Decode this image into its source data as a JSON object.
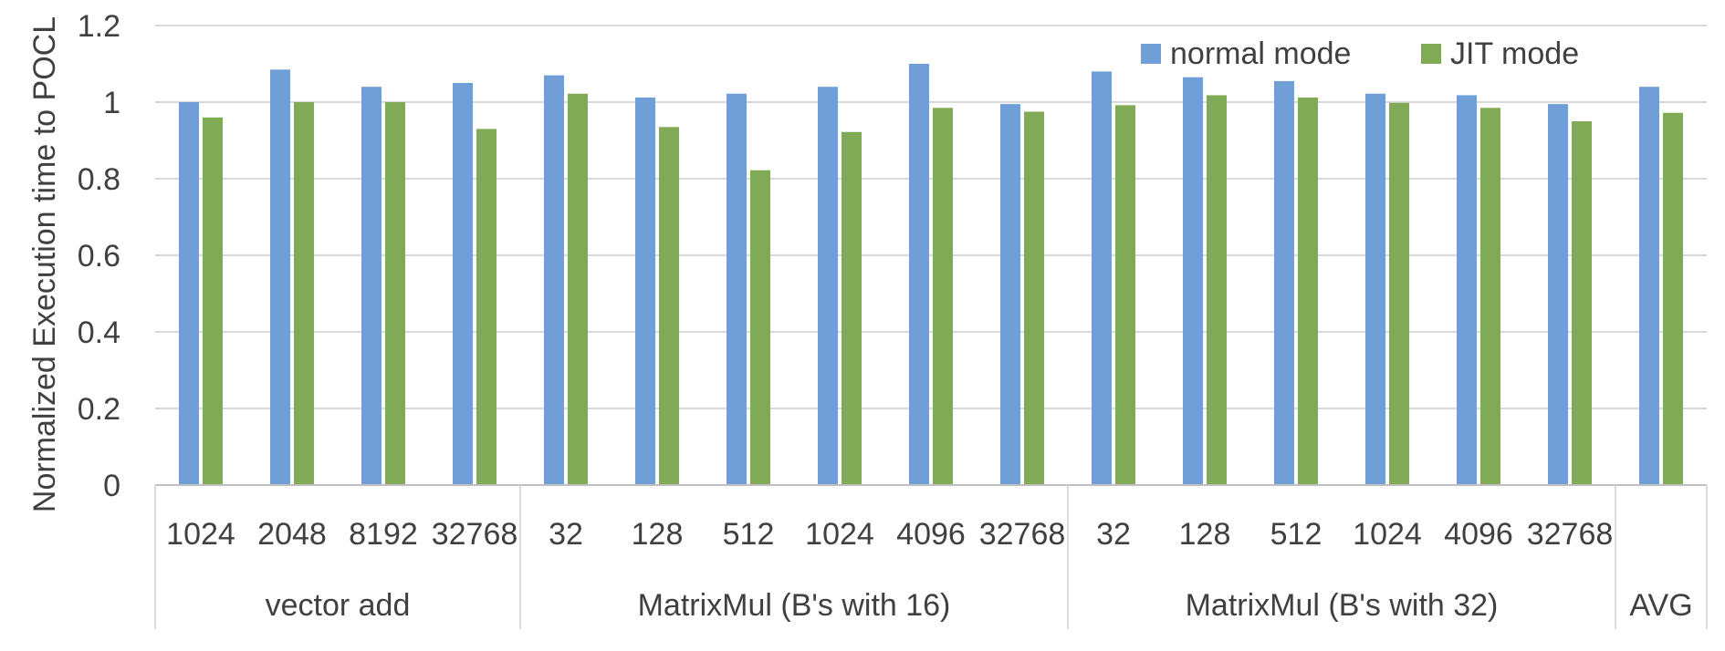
{
  "chart_data": {
    "type": "bar",
    "ylabel": "Normalized Execution time to POCL",
    "ylim": [
      0,
      1.2
    ],
    "yticks": [
      "0",
      "0.2",
      "0.4",
      "0.6",
      "0.8",
      "1",
      "1.2"
    ],
    "grid": "horizontal",
    "legend_position": "top-right",
    "colors": {
      "normal": "#6f9fd6",
      "jit": "#80aa55"
    },
    "groups": [
      {
        "label": "vector add",
        "categories": [
          "1024",
          "2048",
          "8192",
          "32768"
        ]
      },
      {
        "label": "MatrixMul (B's with 16)",
        "categories": [
          "32",
          "128",
          "512",
          "1024",
          "4096",
          "32768"
        ]
      },
      {
        "label": "MatrixMul (B's with 32)",
        "categories": [
          "32",
          "128",
          "512",
          "1024",
          "4096",
          "32768"
        ]
      },
      {
        "label": "AVG",
        "categories": [
          ""
        ]
      }
    ],
    "series": [
      {
        "name": "normal mode",
        "values": [
          1.0,
          1.085,
          1.04,
          1.05,
          1.07,
          1.012,
          1.022,
          1.04,
          1.1,
          0.995,
          1.08,
          1.065,
          1.055,
          1.022,
          1.018,
          0.995,
          1.04
        ]
      },
      {
        "name": "JIT mode",
        "values": [
          0.96,
          1.0,
          1.0,
          0.93,
          1.022,
          0.935,
          0.822,
          0.922,
          0.985,
          0.975,
          0.992,
          1.018,
          1.012,
          0.998,
          0.985,
          0.95,
          0.972
        ]
      }
    ]
  }
}
